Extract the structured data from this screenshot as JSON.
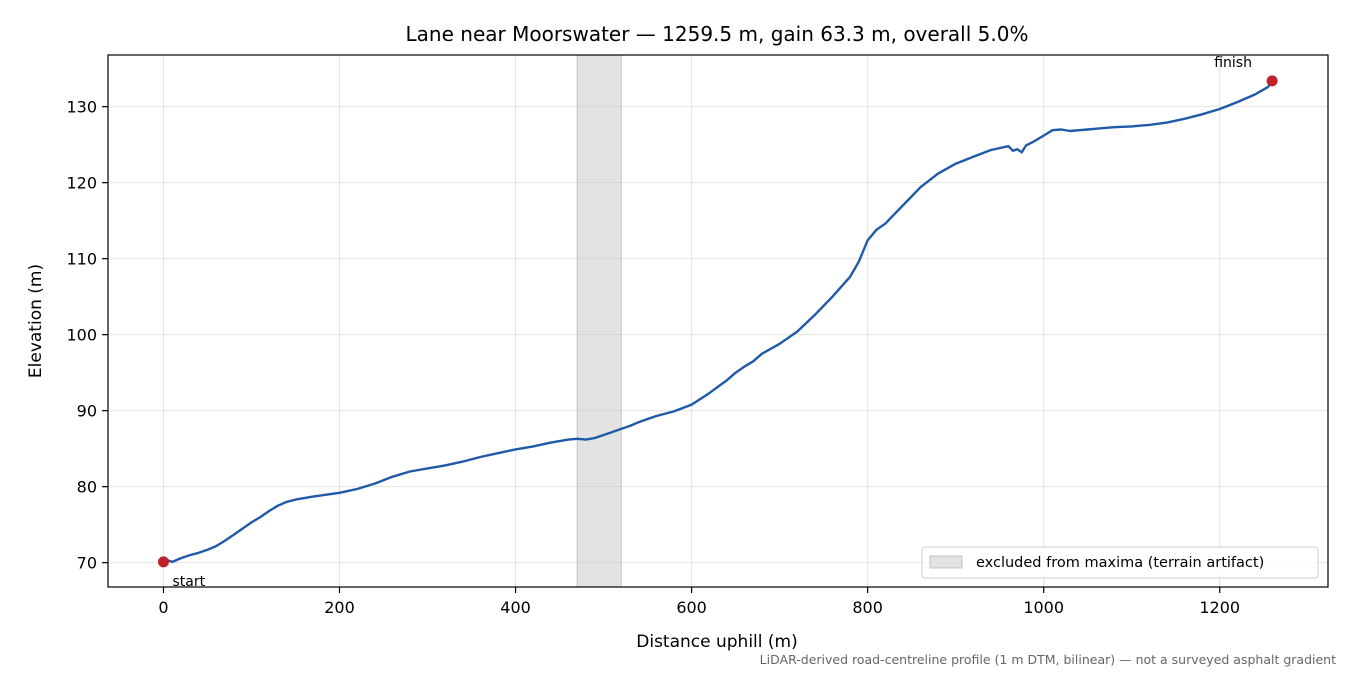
{
  "chart_data": {
    "type": "line",
    "title": "Lane near Moorswater — 1259.5 m, gain 63.3 m, overall 5.0%",
    "xlabel": "Distance uphill (m)",
    "ylabel": "Elevation (m)",
    "xlim": [
      -63,
      1323
    ],
    "ylim": [
      66.8,
      136.8
    ],
    "x_ticks": [
      0,
      200,
      400,
      600,
      800,
      1000,
      1200
    ],
    "y_ticks": [
      70,
      80,
      90,
      100,
      110,
      120,
      130
    ],
    "grid": true,
    "line_color": "#1f5aa8",
    "marker_color": "#c0202a",
    "shade_color": "#c8c8c8",
    "series": [
      {
        "x": [
          0,
          5,
          10,
          20,
          30,
          40,
          50,
          60,
          70,
          80,
          90,
          100,
          110,
          120,
          130,
          140,
          150,
          170,
          200,
          220,
          240,
          260,
          280,
          300,
          320,
          340,
          360,
          380,
          400,
          420,
          440,
          460,
          470,
          480,
          490,
          500,
          510,
          520,
          530,
          540,
          550,
          560,
          580,
          600,
          620,
          640,
          650,
          660,
          670,
          680,
          700,
          720,
          740,
          760,
          780,
          790,
          800,
          810,
          820,
          830,
          840,
          850,
          860,
          880,
          900,
          920,
          940,
          960,
          965,
          970,
          975,
          980,
          990,
          1000,
          1010,
          1020,
          1030,
          1040,
          1050,
          1060,
          1080,
          1100,
          1120,
          1140,
          1160,
          1180,
          1200,
          1220,
          1240,
          1255,
          1259.5
        ],
        "y": [
          70.1,
          70.3,
          70.1,
          70.6,
          71.0,
          71.3,
          71.7,
          72.2,
          72.9,
          73.7,
          74.5,
          75.3,
          76.0,
          76.8,
          77.5,
          78.0,
          78.3,
          78.7,
          79.2,
          79.7,
          80.4,
          81.3,
          82.0,
          82.4,
          82.8,
          83.3,
          83.9,
          84.4,
          84.9,
          85.3,
          85.8,
          86.2,
          86.3,
          86.2,
          86.4,
          86.8,
          87.2,
          87.6,
          88.0,
          88.5,
          88.9,
          89.3,
          89.9,
          90.8,
          92.3,
          94.0,
          95.0,
          95.8,
          96.5,
          97.5,
          98.8,
          100.4,
          102.6,
          105.0,
          107.6,
          109.6,
          112.4,
          113.8,
          114.6,
          115.8,
          117.0,
          118.2,
          119.4,
          121.2,
          122.5,
          123.4,
          124.3,
          124.8,
          124.2,
          124.4,
          124.0,
          124.9,
          125.5,
          126.2,
          126.9,
          127.0,
          126.8,
          126.9,
          127.0,
          127.1,
          127.3,
          127.4,
          127.6,
          127.9,
          128.4,
          129.0,
          129.7,
          130.6,
          131.6,
          132.6,
          133.4
        ]
      }
    ],
    "start": {
      "x": 0,
      "y": 70.1,
      "label": "start"
    },
    "finish": {
      "x": 1259.5,
      "y": 133.4,
      "label": "finish"
    },
    "excluded_region": {
      "x0": 470,
      "x1": 520
    },
    "legend": {
      "label": "excluded from maxima (terrain artifact)",
      "location": "lower-right"
    },
    "footnote": "LiDAR-derived road-centreline profile (1 m DTM, bilinear) — not a surveyed asphalt gradient"
  }
}
